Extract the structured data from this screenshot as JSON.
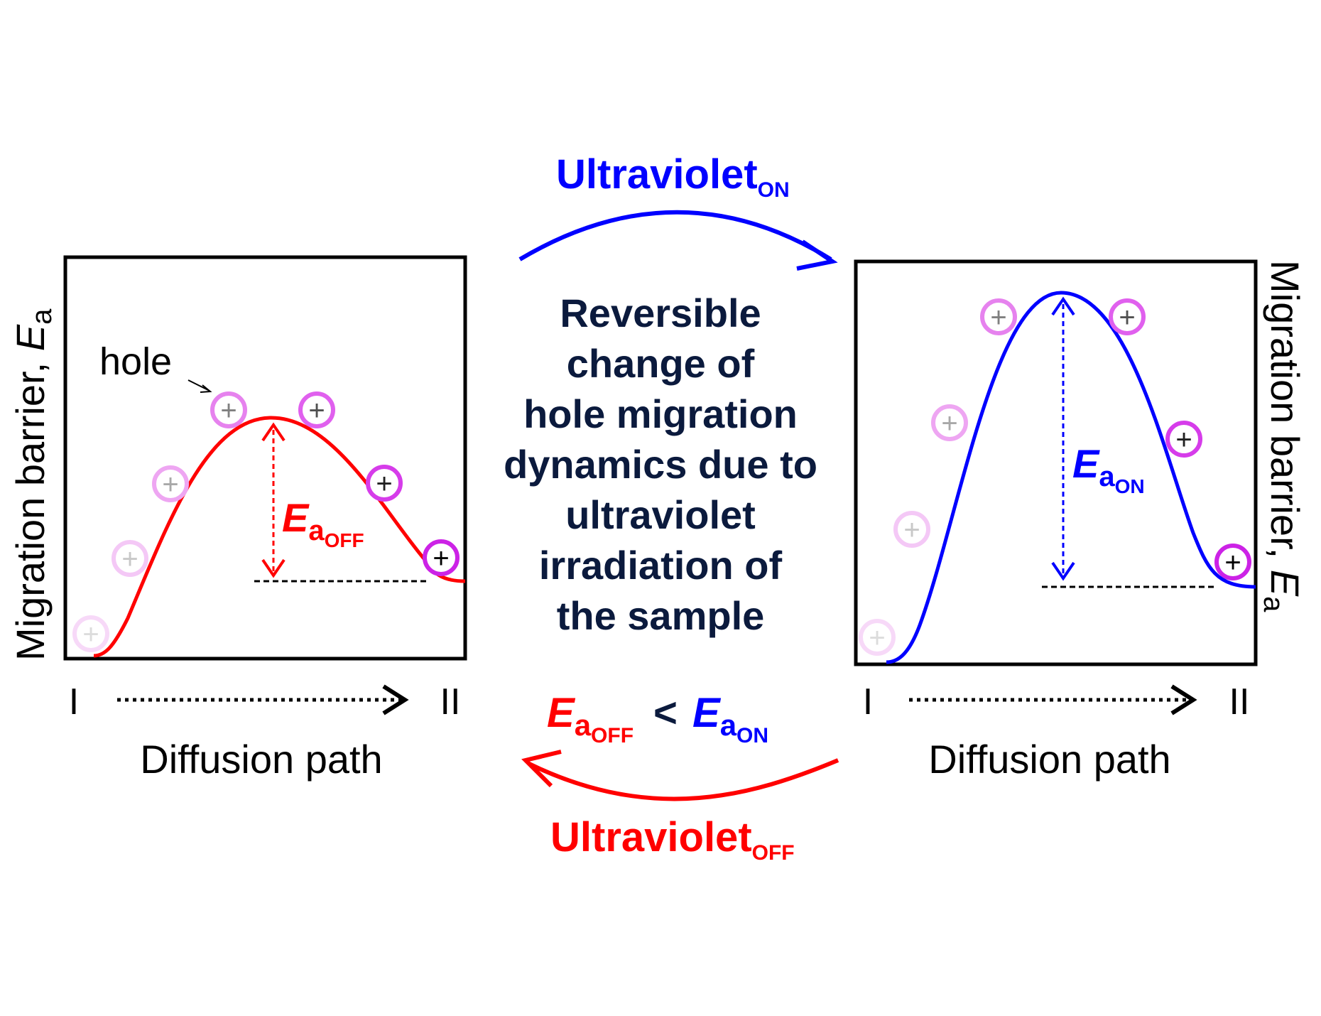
{
  "colors": {
    "off": "#ff0000",
    "on": "#0000ff",
    "text_dark": "#0b1a3d",
    "frame": "#000000",
    "hole_ring": "#e040ff"
  },
  "left_panel": {
    "ylabel_main": "Migration barrier,",
    "ylabel_sym": "E",
    "ylabel_sub": "a",
    "hole_label": "hole",
    "ea_sym": "E",
    "ea_sub": "a",
    "ea_subsub": "OFF",
    "path_start": "I",
    "path_end": "II",
    "xlabel": "Diffusion path"
  },
  "right_panel": {
    "ylabel_main": "Migration barrier,",
    "ylabel_sym": "E",
    "ylabel_sub": "a",
    "ea_sym": "E",
    "ea_sub": "a",
    "ea_subsub": "ON",
    "path_start": "I",
    "path_end": "II",
    "xlabel": "Diffusion path"
  },
  "top_arrow": {
    "label": "Ultraviolet",
    "sub": "ON"
  },
  "bottom_arrow": {
    "label": "Ultraviolet",
    "sub": "OFF"
  },
  "center_text": {
    "lines": [
      "Reversible",
      "change of",
      "hole migration",
      "dynamics due to",
      "ultraviolet",
      "irradiation of",
      "the sample"
    ]
  },
  "comparison": {
    "left_sym": "E",
    "left_sub": "a",
    "left_subsub": "OFF",
    "operator": "<",
    "right_sym": "E",
    "right_sub": "a",
    "right_subsub": "ON"
  },
  "hole_glyph": "+"
}
